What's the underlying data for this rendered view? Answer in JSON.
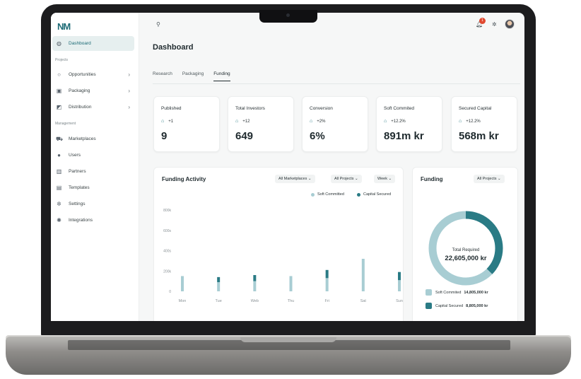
{
  "colors": {
    "accent": "#1d6b76",
    "soft": "#a8cdd3",
    "capital": "#2a7b85",
    "badge": "#e0482f"
  },
  "logo": {
    "text": "NM"
  },
  "sidebar": {
    "items": [
      {
        "label": "Dashboard",
        "icon": "dashboard-icon",
        "active": true
      },
      {
        "section": "Projects"
      },
      {
        "label": "Opportunities",
        "icon": "search-icon",
        "chevron": true
      },
      {
        "label": "Packaging",
        "icon": "box-icon",
        "chevron": true
      },
      {
        "label": "Distribution",
        "icon": "distribution-icon",
        "chevron": true
      },
      {
        "section": "Management"
      },
      {
        "label": "Marketplaces",
        "icon": "cart-icon"
      },
      {
        "label": "Users",
        "icon": "users-icon"
      },
      {
        "label": "Partners",
        "icon": "partners-icon"
      },
      {
        "label": "Templates",
        "icon": "templates-icon"
      },
      {
        "label": "Settings",
        "icon": "gear-icon"
      },
      {
        "label": "Integrations",
        "icon": "integrations-icon"
      }
    ]
  },
  "topbar": {
    "notifications": "1"
  },
  "page": {
    "title": "Dashboard"
  },
  "tabs": [
    {
      "label": "Research"
    },
    {
      "label": "Packaging"
    },
    {
      "label": "Funding",
      "active": true
    }
  ],
  "stats": [
    {
      "label": "Published",
      "delta": "+1",
      "value": "9"
    },
    {
      "label": "Total Investors",
      "delta": "+12",
      "value": "649"
    },
    {
      "label": "Conversion",
      "delta": "+2%",
      "value": "6%"
    },
    {
      "label": "Soft Commited",
      "delta": "+12.2%",
      "value": "891m kr"
    },
    {
      "label": "Secured Capital",
      "delta": "+12.2%",
      "value": "568m kr"
    }
  ],
  "funding_activity": {
    "title": "Funding Activity",
    "filters": {
      "marketplaces": "All Marketplaces",
      "projects": "All Projects",
      "period": "Week"
    },
    "legend": {
      "soft": "Soft Committed",
      "capital": "Capital Secured"
    }
  },
  "funding": {
    "title": "Funding",
    "filter": "All Projects",
    "center_label": "Total Required",
    "center_value": "22,605,000 kr",
    "soft_label": "Soft Commited",
    "soft_value": "14,805,000 kr",
    "capital_label": "Capital Secured",
    "capital_value": "8,805,000 kr"
  },
  "chart_data": [
    {
      "type": "bar",
      "categories": [
        "Mon",
        "Tue",
        "Web",
        "Thu",
        "Fri",
        "Sat",
        "Sun"
      ],
      "series": [
        {
          "name": "Soft Committed",
          "values": [
            150,
            90,
            100,
            150,
            130,
            320,
            110
          ]
        },
        {
          "name": "Capital Secured",
          "values": [
            0,
            50,
            60,
            0,
            80,
            0,
            80
          ]
        }
      ],
      "y_ticks": [
        "800k",
        "600s",
        "400s",
        "200k",
        "0"
      ],
      "ylim": [
        0,
        800
      ]
    },
    {
      "type": "pie",
      "labels": [
        "Soft Commited",
        "Capital Secured"
      ],
      "values": [
        14805000,
        8805000
      ]
    }
  ]
}
